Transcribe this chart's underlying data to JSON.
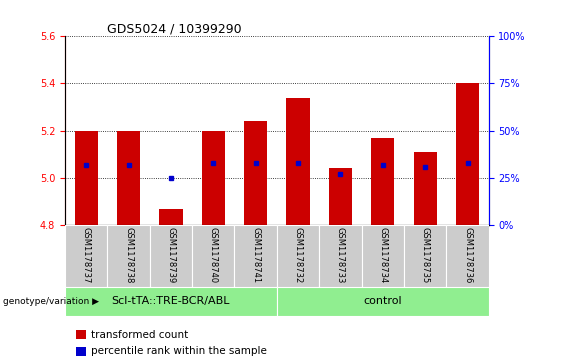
{
  "title": "GDS5024 / 10399290",
  "samples": [
    "GSM1178737",
    "GSM1178738",
    "GSM1178739",
    "GSM1178740",
    "GSM1178741",
    "GSM1178732",
    "GSM1178733",
    "GSM1178734",
    "GSM1178735",
    "GSM1178736"
  ],
  "transformed_counts": [
    5.2,
    5.2,
    4.87,
    5.2,
    5.24,
    5.34,
    5.04,
    5.17,
    5.11,
    5.4
  ],
  "percentile_ranks": [
    32,
    32,
    25,
    33,
    33,
    33,
    27,
    32,
    31,
    33
  ],
  "ylim": [
    4.8,
    5.6
  ],
  "yticks": [
    4.8,
    5.0,
    5.2,
    5.4,
    5.6
  ],
  "right_yticks": [
    0,
    25,
    50,
    75,
    100
  ],
  "right_ylim": [
    0,
    100
  ],
  "bar_color": "#cc0000",
  "dot_color": "#0000cc",
  "bar_width": 0.55,
  "group1_label": "Scl-tTA::TRE-BCR/ABL",
  "group2_label": "control",
  "group1_indices": [
    0,
    1,
    2,
    3,
    4
  ],
  "group2_indices": [
    5,
    6,
    7,
    8,
    9
  ],
  "group_bg_color": "#90ee90",
  "tick_bg_color": "#cccccc",
  "legend_red_label": "transformed count",
  "legend_blue_label": "percentile rank within the sample",
  "genotype_label": "genotype/variation",
  "base_value": 4.8,
  "title_fontsize": 9,
  "tick_fontsize": 7,
  "sample_fontsize": 6,
  "legend_fontsize": 7.5,
  "group_fontsize": 8
}
